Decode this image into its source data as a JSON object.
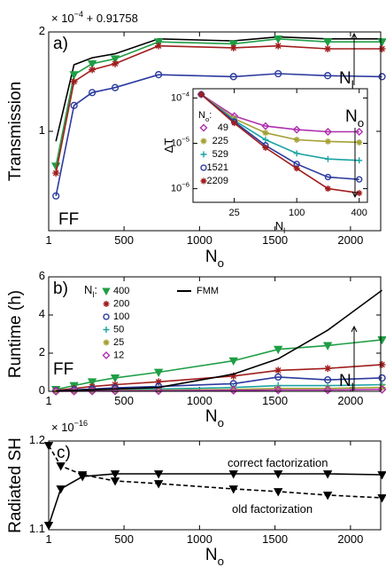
{
  "chart_data": [
    {
      "type": "line",
      "multiplier": {
        "base": "× 10",
        "exp": "−4",
        "rest": " + 0.91758"
      },
      "ylabel": "Transmission",
      "xlabel": "N",
      "xlabel_sub": "o",
      "annotations": [
        {
          "text": "a)"
        },
        {
          "text": "FF"
        },
        {
          "text": "N",
          "sub": "l"
        }
      ],
      "x": [
        49,
        169,
        289,
        441,
        729,
        1225,
        1521,
        1849,
        2209
      ],
      "xlim": [
        1,
        2200
      ],
      "xticks": [
        1,
        500,
        1000,
        1500,
        2000
      ],
      "ylim": [
        0,
        2
      ],
      "yticks": [
        1,
        2
      ],
      "series": [
        {
          "name": "FMM",
          "color": "#000000",
          "marker": "none",
          "values": [
            0.9,
            1.67,
            1.74,
            1.78,
            1.93,
            1.91,
            1.95,
            1.93,
            1.93
          ]
        },
        {
          "name": "400",
          "color": "#1f9e45",
          "marker": "triangle",
          "values": [
            0.65,
            1.57,
            1.68,
            1.73,
            1.9,
            1.88,
            1.93,
            1.9,
            1.9
          ]
        },
        {
          "name": "200",
          "color": "#a11d1d",
          "marker": "star",
          "values": [
            0.58,
            1.5,
            1.62,
            1.68,
            1.86,
            1.84,
            1.86,
            1.83,
            1.83
          ]
        },
        {
          "name": "100",
          "color": "#2b3a9e",
          "marker": "circle",
          "values": [
            0.35,
            1.26,
            1.39,
            1.44,
            1.57,
            1.55,
            1.58,
            1.56,
            1.55
          ]
        }
      ]
    },
    {
      "type": "line",
      "log": true,
      "ylabel": "ΔT",
      "xlabel": "N",
      "xlabel_sub": "l",
      "legend_title": "N",
      "legend_title_sub": "o",
      "legend_title_suffix": ":",
      "annotations": [
        {
          "text": "N",
          "sub": "o"
        }
      ],
      "x": [
        12,
        25,
        50,
        100,
        200,
        400
      ],
      "xlim": [
        10,
        480
      ],
      "xticks": [
        25,
        100,
        400
      ],
      "ylim": [
        5e-07,
        0.00016
      ],
      "yticks": [
        {
          "value": 1e-06,
          "label": "10",
          "exp": "−6"
        },
        {
          "value": 1e-05,
          "label": "10",
          "exp": "−5"
        },
        {
          "value": 0.0001,
          "label": "10",
          "exp": "−4"
        }
      ],
      "series": [
        {
          "name": "49",
          "color": "#b02fb0",
          "marker": "diamond",
          "values": [
            0.00012,
            4e-05,
            2.4e-05,
            2e-05,
            1.8e-05,
            1.8e-05
          ]
        },
        {
          "name": "225",
          "color": "#a5a033",
          "marker": "star",
          "values": [
            0.00012,
            3.5e-05,
            1.7e-05,
            1.2e-05,
            1.1e-05,
            1.05e-05
          ]
        },
        {
          "name": "529",
          "color": "#1aa3a3",
          "marker": "plus",
          "values": [
            0.00012,
            3.2e-05,
            1.2e-05,
            6e-06,
            4.5e-06,
            4.2e-06
          ]
        },
        {
          "name": "1521",
          "color": "#2b3a9e",
          "marker": "circle",
          "values": [
            0.00012,
            3e-05,
            9e-06,
            3.5e-06,
            1.8e-06,
            1.6e-06
          ]
        },
        {
          "name": "2209",
          "color": "#a11d1d",
          "marker": "star",
          "values": [
            0.00012,
            2.8e-05,
            8e-06,
            2.8e-06,
            1e-06,
            8e-07
          ]
        }
      ]
    },
    {
      "type": "line",
      "ylabel": "Runtime (h)",
      "xlabel": "N",
      "xlabel_sub": "o",
      "legend_title": "N",
      "legend_title_sub": "l",
      "legend_title_suffix": ":",
      "annotations": [
        {
          "text": "b)"
        },
        {
          "text": "FF"
        },
        {
          "text": "N",
          "sub": "l"
        }
      ],
      "x": [
        49,
        169,
        289,
        441,
        729,
        1225,
        1521,
        1849,
        2209
      ],
      "xlim": [
        1,
        2200
      ],
      "xticks": [
        1,
        500,
        1000,
        1500,
        2000
      ],
      "ylim": [
        0,
        6
      ],
      "yticks": [
        0,
        2,
        4,
        6
      ],
      "series": [
        {
          "name": "400",
          "color": "#1f9e45",
          "marker": "triangle",
          "values": [
            0.1,
            0.3,
            0.5,
            0.7,
            1.0,
            1.6,
            2.2,
            2.4,
            2.7
          ]
        },
        {
          "name": "200",
          "color": "#a11d1d",
          "marker": "star",
          "values": [
            0.05,
            0.15,
            0.25,
            0.35,
            0.5,
            0.8,
            1.1,
            1.2,
            1.4
          ]
        },
        {
          "name": "100",
          "color": "#2b3a9e",
          "marker": "circle",
          "values": [
            0.03,
            0.08,
            0.12,
            0.18,
            0.25,
            0.4,
            0.75,
            0.6,
            0.7
          ]
        },
        {
          "name": "50",
          "color": "#1aa3a3",
          "marker": "plus",
          "values": [
            0.02,
            0.04,
            0.06,
            0.08,
            0.12,
            0.2,
            0.3,
            0.3,
            0.35
          ]
        },
        {
          "name": "25",
          "color": "#a5a033",
          "marker": "star",
          "values": [
            0.01,
            0.02,
            0.03,
            0.04,
            0.06,
            0.1,
            0.15,
            0.15,
            0.2
          ]
        },
        {
          "name": "12",
          "color": "#b02fb0",
          "marker": "diamond",
          "values": [
            0.005,
            0.01,
            0.015,
            0.02,
            0.03,
            0.05,
            0.07,
            0.07,
            0.1
          ]
        },
        {
          "name": "FMM",
          "color": "#000000",
          "marker": "none",
          "values": [
            0.02,
            0.05,
            0.08,
            0.12,
            0.2,
            0.9,
            1.7,
            3.2,
            5.3
          ]
        }
      ]
    },
    {
      "type": "line",
      "multiplier": {
        "base": "× 10",
        "exp": "−16"
      },
      "ylabel": "Radiated SH",
      "xlabel": "N",
      "xlabel_sub": "o",
      "annotations": [
        {
          "text": "c)"
        },
        {
          "text": "correct factorization"
        },
        {
          "text": "old factorization"
        }
      ],
      "x": [
        1,
        81,
        225,
        441,
        729,
        1225,
        1521,
        1849,
        2209
      ],
      "xlim": [
        1,
        2200
      ],
      "xticks": [
        1,
        500,
        1000,
        1500,
        2000
      ],
      "ylim": [
        1.1,
        1.2
      ],
      "yticks": [
        1.1,
        1.2
      ],
      "series": [
        {
          "name": "correct factorization",
          "color": "#000000",
          "marker": "triangle",
          "values": [
            1.105,
            1.146,
            1.16,
            1.163,
            1.163,
            1.163,
            1.163,
            1.163,
            1.162
          ]
        },
        {
          "name": "old factorization",
          "color": "#000000",
          "marker": "triangle",
          "dash": true,
          "values": [
            1.195,
            1.172,
            1.162,
            1.155,
            1.152,
            1.146,
            1.143,
            1.139,
            1.136
          ]
        }
      ]
    }
  ]
}
